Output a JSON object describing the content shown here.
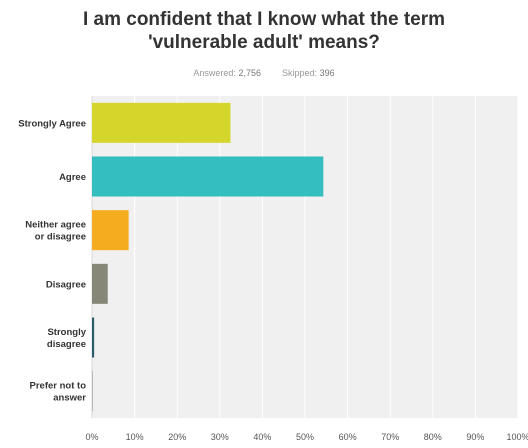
{
  "header": {
    "title_line1": "I am  confident that I know what the term",
    "title_line2": "'vulnerable adult' means?",
    "answered_label": "Answered:",
    "answered_value": "2,756",
    "skipped_label": "Skipped:",
    "skipped_value": "396"
  },
  "chart_data": {
    "type": "bar",
    "orientation": "horizontal",
    "categories": [
      [
        "Strongly Agree"
      ],
      [
        "Agree"
      ],
      [
        "Neither agree",
        "or disagree"
      ],
      [
        "Disagree"
      ],
      [
        "Strongly",
        "disagree"
      ],
      [
        "Prefer not to",
        "answer"
      ]
    ],
    "values": [
      32.5,
      54.3,
      8.6,
      3.7,
      0.5,
      0.2
    ],
    "colors": [
      "#d4d62b",
      "#34bebf",
      "#f5ac1f",
      "#878778",
      "#2a5d6b",
      "#b8b8b8"
    ],
    "xlim": [
      0,
      100
    ],
    "xticks": [
      "0%",
      "10%",
      "20%",
      "30%",
      "40%",
      "50%",
      "60%",
      "70%",
      "80%",
      "90%",
      "100%"
    ],
    "grid": true,
    "background": "#f0f0f0",
    "gridline_color": "#ffffff"
  }
}
